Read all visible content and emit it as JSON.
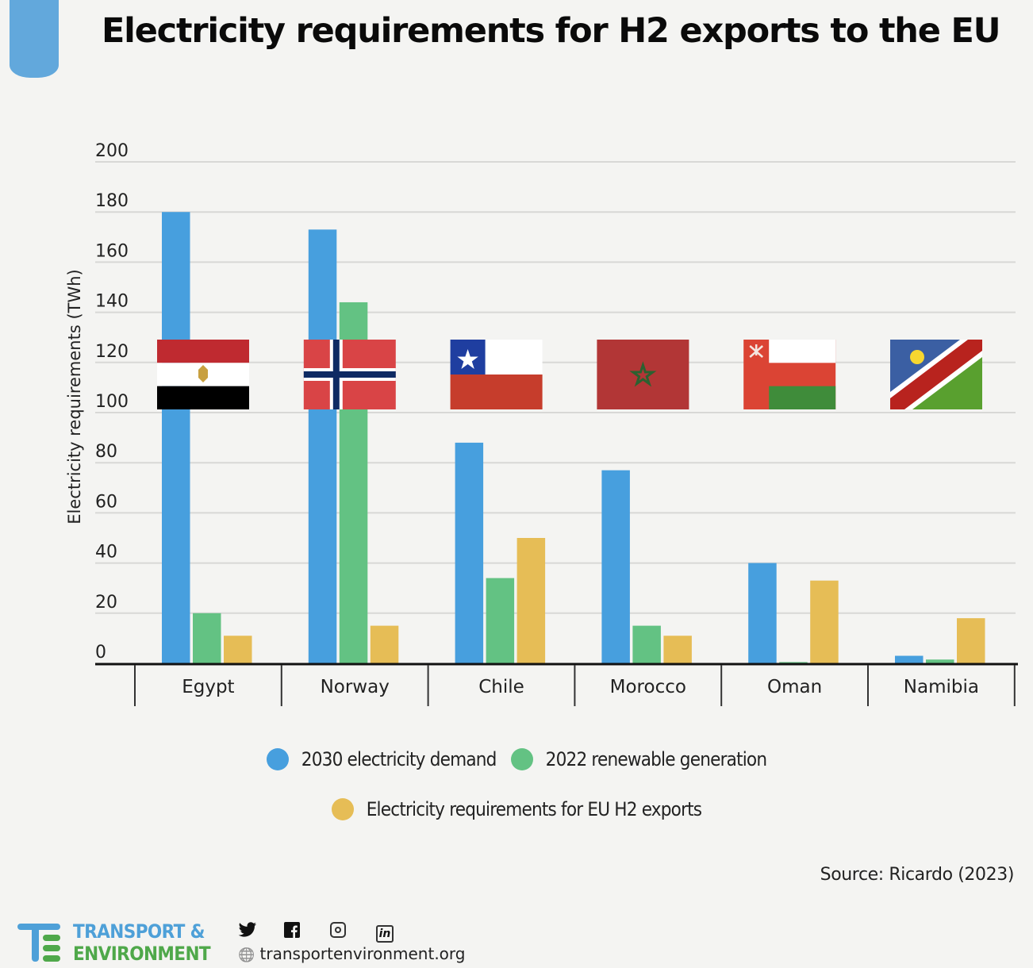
{
  "header": {
    "title": "Electricity requirements for H2 exports to the EU"
  },
  "chart_data": {
    "type": "bar",
    "title": "Electricity requirements for H2 exports to the EU",
    "xlabel": "",
    "ylabel": "Electricity requirements (TWh)",
    "ylim": [
      0,
      200
    ],
    "yticks": [
      0,
      20,
      40,
      60,
      80,
      100,
      120,
      140,
      160,
      180,
      200
    ],
    "grid": true,
    "categories": [
      "Egypt",
      "Norway",
      "Chile",
      "Morocco",
      "Oman",
      "Namibia"
    ],
    "series": [
      {
        "name": "2030 electricity demand",
        "color": "#479fde",
        "values": [
          180,
          173,
          88,
          77,
          40,
          3
        ]
      },
      {
        "name": "2022 renewable generation",
        "color": "#63c283",
        "values": [
          20,
          144,
          34,
          15,
          0.5,
          1.5
        ]
      },
      {
        "name": "Electricity requirements for EU H2 exports",
        "color": "#e6bd56",
        "values": [
          11,
          15,
          50,
          11,
          33,
          18
        ]
      }
    ],
    "flags": [
      "egypt-flag",
      "norway-flag",
      "chile-flag",
      "morocco-flag",
      "oman-flag",
      "namibia-flag"
    ],
    "legend_position": "bottom"
  },
  "legend": {
    "items": [
      {
        "label": "2030 electricity demand",
        "color": "#479fde"
      },
      {
        "label": "2022 renewable generation",
        "color": "#63c283"
      },
      {
        "label": "Electricity requirements for EU H2 exports",
        "color": "#e6bd56"
      }
    ]
  },
  "source": "Source: Ricardo (2023)",
  "footer": {
    "brand_line1": "TRANSPORT &",
    "brand_line2": "ENVIRONMENT",
    "twitter_icon": "twitter-icon",
    "facebook_icon": "facebook-icon",
    "instagram_icon": "instagram-icon",
    "linkedin_icon": "linkedin-icon",
    "linkedin_text": "in",
    "globe_glyph": "🌐",
    "website": "transportenvironment.org"
  }
}
